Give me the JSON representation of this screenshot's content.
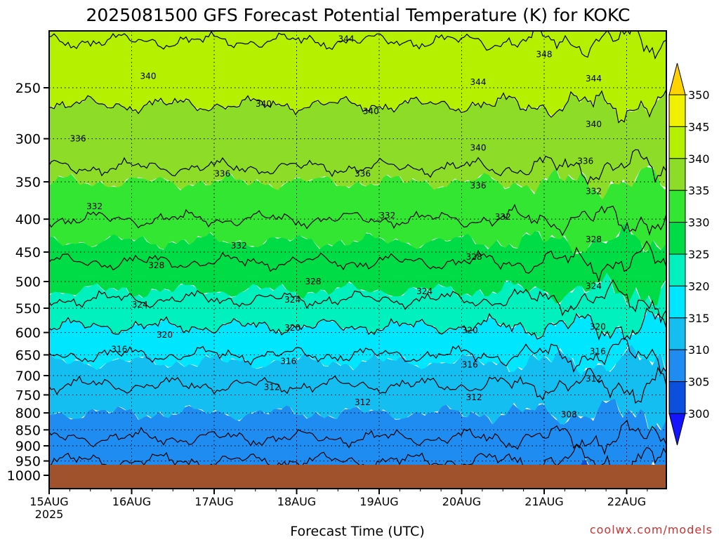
{
  "chart_data": {
    "type": "heatmap",
    "title": "2025081500 GFS Forecast Potential Temperature (K) for KOKC",
    "xlabel": "Forecast Time (UTC)",
    "ylabel": "",
    "credit": "coolwx.com/models",
    "x_ticks": [
      "15AUG",
      "16AUG",
      "17AUG",
      "18AUG",
      "19AUG",
      "20AUG",
      "21AUG",
      "22AUG"
    ],
    "x_sub_label": "2025",
    "x_range_days": [
      0,
      7.45
    ],
    "y_ticks": [
      250,
      300,
      350,
      400,
      450,
      500,
      550,
      600,
      650,
      700,
      750,
      800,
      850,
      900,
      950,
      1000
    ],
    "y_range_hpa": [
      200,
      1000
    ],
    "y_scale": "log-pressure",
    "ground_color": "#a0522d",
    "colorbar": {
      "levels": [
        300,
        305,
        310,
        315,
        320,
        325,
        330,
        335,
        340,
        345,
        350
      ],
      "labels": [
        "300",
        "305",
        "310",
        "315",
        "320",
        "325",
        "330",
        "335",
        "340",
        "345",
        "350"
      ],
      "colors": [
        "#1414ff",
        "#0a50dc",
        "#1e8cf0",
        "#14bef0",
        "#00e6ff",
        "#00f0be",
        "#00dc46",
        "#32e632",
        "#8cdc28",
        "#b4f000",
        "#f0f000",
        "#ffd200"
      ]
    },
    "contour_levels": [
      308,
      312,
      316,
      320,
      324,
      328,
      332,
      336,
      340,
      344,
      348
    ],
    "theta_profile": [
      {
        "p": 1000,
        "theta": 305
      },
      {
        "p": 950,
        "theta": 306
      },
      {
        "p": 900,
        "theta": 307
      },
      {
        "p": 850,
        "theta": 309
      },
      {
        "p": 800,
        "theta": 310
      },
      {
        "p": 750,
        "theta": 311
      },
      {
        "p": 700,
        "theta": 313
      },
      {
        "p": 650,
        "theta": 316
      },
      {
        "p": 600,
        "theta": 319
      },
      {
        "p": 550,
        "theta": 323
      },
      {
        "p": 500,
        "theta": 326
      },
      {
        "p": 450,
        "theta": 329
      },
      {
        "p": 400,
        "theta": 332
      },
      {
        "p": 350,
        "theta": 335
      },
      {
        "p": 300,
        "theta": 338
      },
      {
        "p": 250,
        "theta": 341
      },
      {
        "p": 200,
        "theta": 345
      }
    ],
    "contour_labels": [
      {
        "text": "344",
        "day": 3.6,
        "p": 210
      },
      {
        "text": "348",
        "day": 6.0,
        "p": 222
      },
      {
        "text": "340",
        "day": 1.2,
        "p": 240
      },
      {
        "text": "344",
        "day": 5.2,
        "p": 245
      },
      {
        "text": "344",
        "day": 6.6,
        "p": 242
      },
      {
        "text": "340",
        "day": 2.6,
        "p": 265
      },
      {
        "text": "340",
        "day": 3.9,
        "p": 272
      },
      {
        "text": "340",
        "day": 6.6,
        "p": 285
      },
      {
        "text": "336",
        "day": 0.35,
        "p": 300
      },
      {
        "text": "340",
        "day": 5.2,
        "p": 310
      },
      {
        "text": "336",
        "day": 6.5,
        "p": 325
      },
      {
        "text": "336",
        "day": 2.1,
        "p": 340
      },
      {
        "text": "336",
        "day": 3.8,
        "p": 340
      },
      {
        "text": "336",
        "day": 5.2,
        "p": 355
      },
      {
        "text": "332",
        "day": 6.6,
        "p": 362
      },
      {
        "text": "332",
        "day": 0.55,
        "p": 382
      },
      {
        "text": "332",
        "day": 4.1,
        "p": 395
      },
      {
        "text": "332",
        "day": 5.5,
        "p": 397
      },
      {
        "text": "328",
        "day": 6.6,
        "p": 430
      },
      {
        "text": "332",
        "day": 2.3,
        "p": 440
      },
      {
        "text": "328",
        "day": 5.15,
        "p": 458
      },
      {
        "text": "328",
        "day": 1.3,
        "p": 472
      },
      {
        "text": "328",
        "day": 3.2,
        "p": 500
      },
      {
        "text": "324",
        "day": 6.6,
        "p": 508
      },
      {
        "text": "324",
        "day": 4.55,
        "p": 518
      },
      {
        "text": "324",
        "day": 2.95,
        "p": 534
      },
      {
        "text": "324",
        "day": 1.1,
        "p": 543
      },
      {
        "text": "320",
        "day": 2.95,
        "p": 590
      },
      {
        "text": "320",
        "day": 1.4,
        "p": 605
      },
      {
        "text": "320",
        "day": 5.1,
        "p": 595
      },
      {
        "text": "320",
        "day": 6.65,
        "p": 588
      },
      {
        "text": "316",
        "day": 0.85,
        "p": 637
      },
      {
        "text": "316",
        "day": 2.9,
        "p": 665
      },
      {
        "text": "316",
        "day": 5.1,
        "p": 673
      },
      {
        "text": "316",
        "day": 6.65,
        "p": 642
      },
      {
        "text": "312",
        "day": 2.7,
        "p": 730
      },
      {
        "text": "312",
        "day": 6.6,
        "p": 708
      },
      {
        "text": "312",
        "day": 5.15,
        "p": 757
      },
      {
        "text": "312",
        "day": 3.8,
        "p": 770
      },
      {
        "text": "308",
        "day": 6.3,
        "p": 805
      }
    ]
  }
}
